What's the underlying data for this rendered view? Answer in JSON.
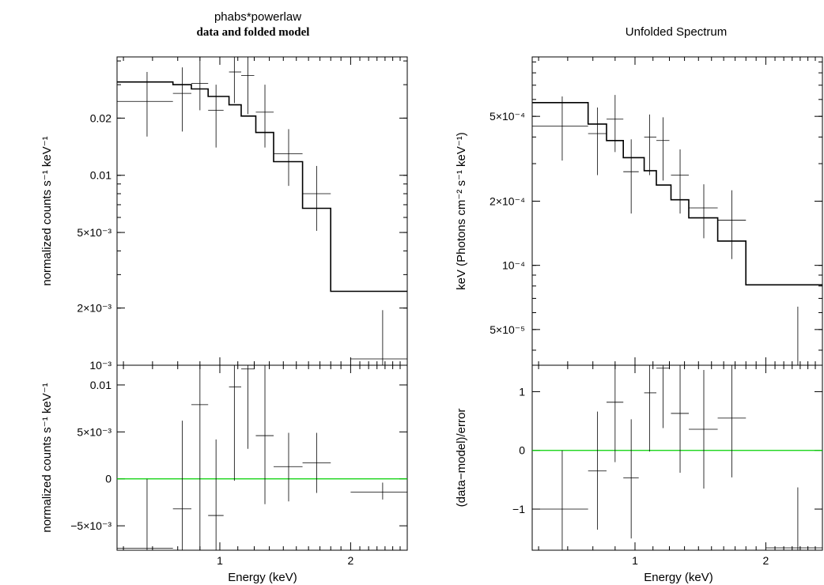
{
  "chart_data": {
    "title": "phabs*powerlaw",
    "subtitle": "data and folded model",
    "xlabel": "Energy (keV)",
    "xscale": "log",
    "xlim": [
      0.58,
      2.7
    ],
    "panels": [
      {
        "id": "left",
        "heading": "",
        "top": {
          "type": "step+errorbar",
          "ylabel": "normalized counts s⁻¹ keV⁻¹",
          "yscale": "log",
          "ylim": [
            0.001,
            0.042
          ],
          "yticks": [
            {
              "v": 0.02,
              "label": "0.02"
            },
            {
              "v": 0.01,
              "label": "0.01"
            },
            {
              "v": 0.005,
              "label": "5×10⁻³"
            },
            {
              "v": 0.002,
              "label": "2×10⁻³"
            },
            {
              "v": 0.001,
              "label": "10⁻³"
            }
          ],
          "data": [
            {
              "x": 0.68,
              "xlo": 0.58,
              "xhi": 0.78,
              "y": 0.0245,
              "ylo": 0.016,
              "yhi": 0.035
            },
            {
              "x": 0.82,
              "xlo": 0.78,
              "xhi": 0.86,
              "y": 0.027,
              "ylo": 0.017,
              "yhi": 0.037
            },
            {
              "x": 0.9,
              "xlo": 0.86,
              "xhi": 0.94,
              "y": 0.0305,
              "ylo": 0.022,
              "yhi": 0.042
            },
            {
              "x": 0.98,
              "xlo": 0.94,
              "xhi": 1.02,
              "y": 0.022,
              "ylo": 0.014,
              "yhi": 0.03
            },
            {
              "x": 1.08,
              "xlo": 1.05,
              "xhi": 1.12,
              "y": 0.035,
              "ylo": 0.024,
              "yhi": 0.042
            },
            {
              "x": 1.16,
              "xlo": 1.12,
              "xhi": 1.2,
              "y": 0.0335,
              "ylo": 0.021,
              "yhi": 0.042
            },
            {
              "x": 1.27,
              "xlo": 1.21,
              "xhi": 1.33,
              "y": 0.0215,
              "ylo": 0.014,
              "yhi": 0.03
            },
            {
              "x": 1.44,
              "xlo": 1.33,
              "xhi": 1.55,
              "y": 0.013,
              "ylo": 0.0088,
              "yhi": 0.0175
            },
            {
              "x": 1.67,
              "xlo": 1.55,
              "xhi": 1.8,
              "y": 0.008,
              "ylo": 0.0051,
              "yhi": 0.0112
            },
            {
              "x": 2.37,
              "xlo": 2.0,
              "xhi": 2.7,
              "y": 0.00108,
              "ylo": 0.001,
              "yhi": 0.00195
            }
          ],
          "model_steps": [
            {
              "xlo": 0.58,
              "xhi": 0.78,
              "y": 0.031
            },
            {
              "xlo": 0.78,
              "xhi": 0.86,
              "y": 0.03
            },
            {
              "xlo": 0.86,
              "xhi": 0.94,
              "y": 0.0285
            },
            {
              "xlo": 0.94,
              "xhi": 1.05,
              "y": 0.026
            },
            {
              "xlo": 1.05,
              "xhi": 1.12,
              "y": 0.0235
            },
            {
              "xlo": 1.12,
              "xhi": 1.21,
              "y": 0.0205
            },
            {
              "xlo": 1.21,
              "xhi": 1.33,
              "y": 0.0168
            },
            {
              "xlo": 1.33,
              "xhi": 1.55,
              "y": 0.0118
            },
            {
              "xlo": 1.55,
              "xhi": 1.8,
              "y": 0.0067
            },
            {
              "xlo": 1.8,
              "xhi": 2.7,
              "y": 0.00245
            }
          ]
        },
        "bottom": {
          "type": "errorbar",
          "ylabel": "normalized counts s⁻¹ keV⁻¹",
          "yscale": "linear",
          "ylim": [
            -0.0076,
            0.0121
          ],
          "yticks": [
            {
              "v": 0.01,
              "label": "0.01"
            },
            {
              "v": 0.005,
              "label": "5×10⁻³"
            },
            {
              "v": 0,
              "label": "0"
            },
            {
              "v": -0.005,
              "label": "−5×10⁻³"
            }
          ],
          "zero_line_color": "#00d000",
          "data": [
            {
              "x": 0.68,
              "xlo": 0.58,
              "xhi": 0.78,
              "y": -0.0074,
              "ylo": -0.0076,
              "yhi": 0.0
            },
            {
              "x": 0.82,
              "xlo": 0.78,
              "xhi": 0.86,
              "y": -0.0032,
              "ylo": -0.0076,
              "yhi": 0.0062
            },
            {
              "x": 0.9,
              "xlo": 0.86,
              "xhi": 0.94,
              "y": 0.0079,
              "ylo": -0.0076,
              "yhi": 0.0121
            },
            {
              "x": 0.98,
              "xlo": 0.94,
              "xhi": 1.02,
              "y": -0.0039,
              "ylo": -0.0076,
              "yhi": 0.0042
            },
            {
              "x": 1.08,
              "xlo": 1.05,
              "xhi": 1.12,
              "y": 0.0098,
              "ylo": -0.0002,
              "yhi": 0.0121
            },
            {
              "x": 1.16,
              "xlo": 1.12,
              "xhi": 1.2,
              "y": 0.0117,
              "ylo": 0.0032,
              "yhi": 0.0121
            },
            {
              "x": 1.27,
              "xlo": 1.21,
              "xhi": 1.33,
              "y": 0.0046,
              "ylo": -0.0027,
              "yhi": 0.0121
            },
            {
              "x": 1.44,
              "xlo": 1.33,
              "xhi": 1.55,
              "y": 0.0013,
              "ylo": -0.0024,
              "yhi": 0.0049
            },
            {
              "x": 1.67,
              "xlo": 1.55,
              "xhi": 1.8,
              "y": 0.0017,
              "ylo": -0.0015,
              "yhi": 0.0049
            },
            {
              "x": 2.37,
              "xlo": 2.0,
              "xhi": 2.7,
              "y": -0.0014,
              "ylo": -0.0022,
              "yhi": -0.0004
            }
          ]
        }
      },
      {
        "id": "right",
        "heading": "Unfolded Spectrum",
        "top": {
          "type": "step+errorbar",
          "ylabel": "keV (Photons cm⁻² s⁻¹ keV⁻¹)",
          "yscale": "log",
          "ylim": [
            3.4e-05,
            0.00095
          ],
          "yticks": [
            {
              "v": 0.0005,
              "label": "5×10⁻⁴"
            },
            {
              "v": 0.0002,
              "label": "2×10⁻⁴"
            },
            {
              "v": 0.0001,
              "label": "10⁻⁴"
            },
            {
              "v": 5e-05,
              "label": "5×10⁻⁵"
            }
          ],
          "data": [
            {
              "x": 0.68,
              "xlo": 0.58,
              "xhi": 0.78,
              "y": 0.00045,
              "ylo": 0.00031,
              "yhi": 0.00062
            },
            {
              "x": 0.82,
              "xlo": 0.78,
              "xhi": 0.86,
              "y": 0.000415,
              "ylo": 0.000265,
              "yhi": 0.00055
            },
            {
              "x": 0.9,
              "xlo": 0.86,
              "xhi": 0.94,
              "y": 0.000485,
              "ylo": 0.00034,
              "yhi": 0.00063
            },
            {
              "x": 0.98,
              "xlo": 0.94,
              "xhi": 1.02,
              "y": 0.000275,
              "ylo": 0.000175,
              "yhi": 0.00039
            },
            {
              "x": 1.08,
              "xlo": 1.05,
              "xhi": 1.12,
              "y": 0.0004,
              "ylo": 0.000265,
              "yhi": 0.00051
            },
            {
              "x": 1.16,
              "xlo": 1.12,
              "xhi": 1.2,
              "y": 0.000385,
              "ylo": 0.00025,
              "yhi": 0.000495
            },
            {
              "x": 1.27,
              "xlo": 1.21,
              "xhi": 1.33,
              "y": 0.000265,
              "ylo": 0.000175,
              "yhi": 0.00035
            },
            {
              "x": 1.44,
              "xlo": 1.33,
              "xhi": 1.55,
              "y": 0.000186,
              "ylo": 0.000134,
              "yhi": 0.00024
            },
            {
              "x": 1.67,
              "xlo": 1.55,
              "xhi": 1.8,
              "y": 0.000163,
              "ylo": 0.000107,
              "yhi": 0.000225
            },
            {
              "x": 2.37,
              "xlo": 2.0,
              "xhi": 2.7,
              "y": 3.4e-05,
              "ylo": 3.4e-05,
              "yhi": 6.4e-05
            }
          ],
          "model_steps": [
            {
              "xlo": 0.58,
              "xhi": 0.78,
              "y": 0.00058
            },
            {
              "xlo": 0.78,
              "xhi": 0.86,
              "y": 0.00046
            },
            {
              "xlo": 0.86,
              "xhi": 0.94,
              "y": 0.000385
            },
            {
              "xlo": 0.94,
              "xhi": 1.05,
              "y": 0.00032
            },
            {
              "xlo": 1.05,
              "xhi": 1.12,
              "y": 0.000278
            },
            {
              "xlo": 1.12,
              "xhi": 1.21,
              "y": 0.000238
            },
            {
              "xlo": 1.21,
              "xhi": 1.33,
              "y": 0.000203
            },
            {
              "xlo": 1.33,
              "xhi": 1.55,
              "y": 0.000167
            },
            {
              "xlo": 1.55,
              "xhi": 1.8,
              "y": 0.00013
            },
            {
              "xlo": 1.8,
              "xhi": 2.7,
              "y": 8.1e-05
            }
          ]
        },
        "bottom": {
          "type": "errorbar",
          "ylabel": "(data−model)/error",
          "yscale": "linear",
          "ylim": [
            -1.7,
            1.45
          ],
          "yticks": [
            {
              "v": 1,
              "label": "1"
            },
            {
              "v": 0,
              "label": "0"
            },
            {
              "v": -1,
              "label": "−1"
            }
          ],
          "zero_line_color": "#00d000",
          "data": [
            {
              "x": 0.68,
              "xlo": 0.58,
              "xhi": 0.78,
              "y": -1.0,
              "ylo": -1.7,
              "yhi": 0.0
            },
            {
              "x": 0.82,
              "xlo": 0.78,
              "xhi": 0.86,
              "y": -0.35,
              "ylo": -1.35,
              "yhi": 0.66
            },
            {
              "x": 0.9,
              "xlo": 0.86,
              "xhi": 0.94,
              "y": 0.82,
              "ylo": -0.2,
              "yhi": 1.45
            },
            {
              "x": 0.98,
              "xlo": 0.94,
              "xhi": 1.02,
              "y": -0.47,
              "ylo": -1.5,
              "yhi": 0.53
            },
            {
              "x": 1.08,
              "xlo": 1.05,
              "xhi": 1.12,
              "y": 0.98,
              "ylo": -0.02,
              "yhi": 1.45
            },
            {
              "x": 1.16,
              "xlo": 1.12,
              "xhi": 1.2,
              "y": 1.4,
              "ylo": 0.38,
              "yhi": 1.45
            },
            {
              "x": 1.27,
              "xlo": 1.21,
              "xhi": 1.33,
              "y": 0.63,
              "ylo": -0.38,
              "yhi": 1.45
            },
            {
              "x": 1.44,
              "xlo": 1.33,
              "xhi": 1.55,
              "y": 0.36,
              "ylo": -0.65,
              "yhi": 1.37
            },
            {
              "x": 1.67,
              "xlo": 1.55,
              "xhi": 1.8,
              "y": 0.55,
              "ylo": -0.46,
              "yhi": 1.45
            },
            {
              "x": 2.37,
              "xlo": 2.0,
              "xhi": 2.7,
              "y": -1.66,
              "ylo": -1.7,
              "yhi": -0.63
            }
          ]
        }
      }
    ],
    "xticks": [
      {
        "v": 1,
        "label": "1"
      },
      {
        "v": 2,
        "label": "2"
      }
    ]
  }
}
